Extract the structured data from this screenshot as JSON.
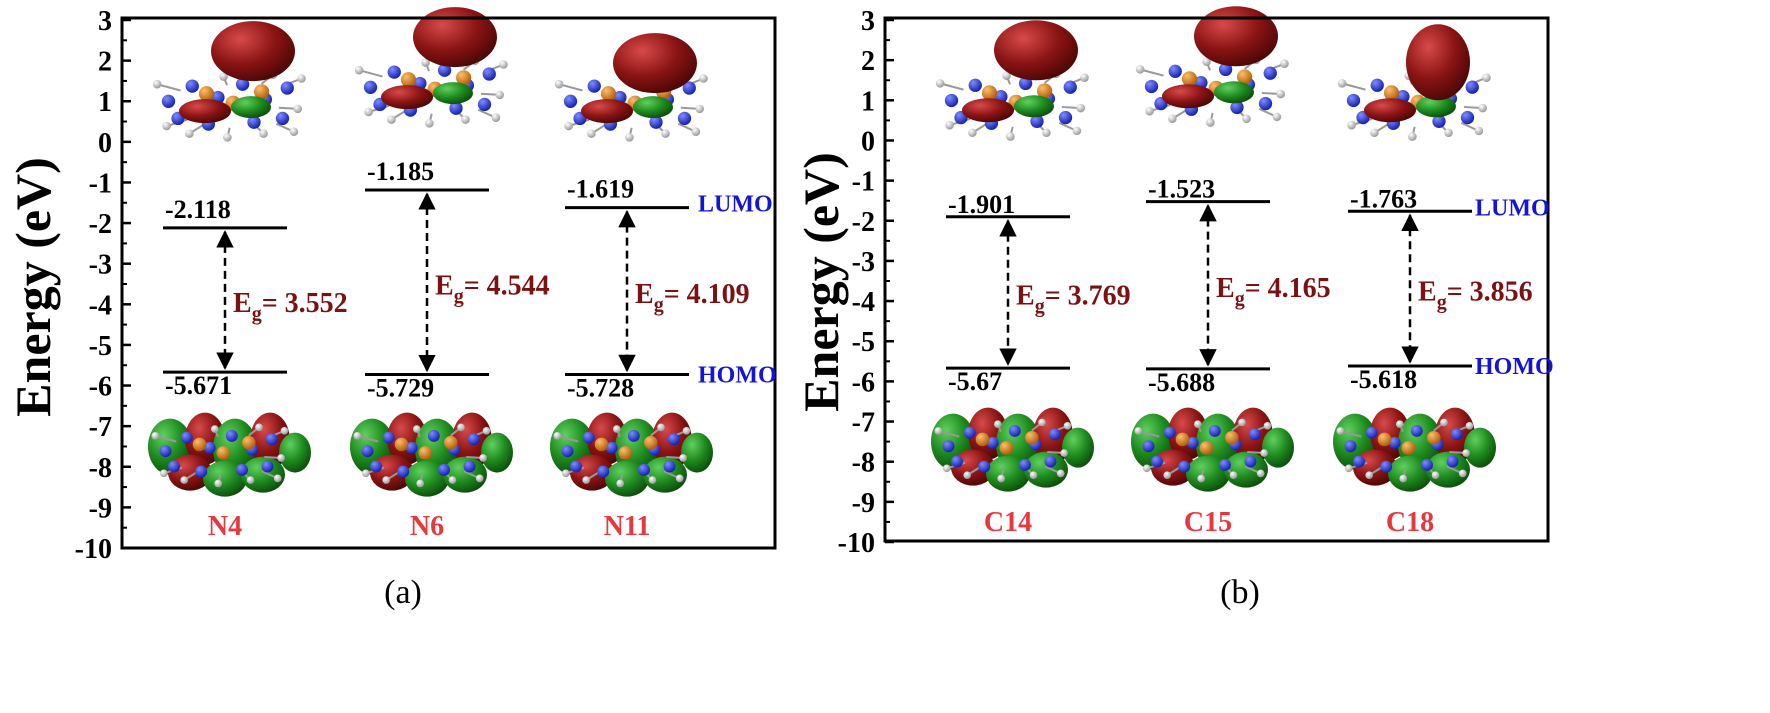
{
  "chart_data": [
    {
      "type": "energy-level diagram",
      "panel": "(a)",
      "ylabel": "Energy (eV)",
      "ylim": [
        -10,
        3
      ],
      "yticks": [
        "3",
        "2",
        "1",
        "0",
        "-1",
        "-2",
        "-3",
        "-4",
        "-5",
        "-6",
        "-7",
        "-8",
        "-9",
        "-10"
      ],
      "level_tags": {
        "lumo": "LUMO",
        "homo": "HOMO"
      },
      "gap_label": {
        "main": "E",
        "sub": "g",
        "sep": "= "
      },
      "systems": [
        {
          "name": "N4",
          "lumo": -2.118,
          "homo": -5.671,
          "lumo_label": "-2.118",
          "homo_label": "-5.671",
          "gap_label": "3.552"
        },
        {
          "name": "N6",
          "lumo": -1.185,
          "homo": -5.729,
          "lumo_label": "-1.185",
          "homo_label": "-5.729",
          "gap_label": "4.544"
        },
        {
          "name": "N11",
          "lumo": -1.619,
          "homo": -5.728,
          "lumo_label": "-1.619",
          "homo_label": "-5.728",
          "gap_label": "4.109"
        }
      ]
    },
    {
      "type": "energy-level diagram",
      "panel": "(b)",
      "ylabel": "Energy (eV)",
      "ylim": [
        -10,
        3
      ],
      "yticks": [
        "3",
        "2",
        "1",
        "0",
        "-1",
        "-2",
        "-3",
        "-4",
        "-5",
        "-6",
        "-7",
        "-8",
        "-9",
        "-10"
      ],
      "level_tags": {
        "lumo": "LUMO",
        "homo": "HOMO"
      },
      "gap_label": {
        "main": "E",
        "sub": "g",
        "sep": "= "
      },
      "systems": [
        {
          "name": "C14",
          "lumo": -1.901,
          "homo": -5.67,
          "lumo_label": "-1.901",
          "homo_label": "-5.67",
          "gap_label": "3.769"
        },
        {
          "name": "C15",
          "lumo": -1.523,
          "homo": -5.688,
          "lumo_label": "-1.523",
          "homo_label": "-5.688",
          "gap_label": "4.165"
        },
        {
          "name": "C18",
          "lumo": -1.763,
          "homo": -5.618,
          "lumo_label": "-1.763",
          "homo_label": "-5.618",
          "gap_label": "3.856"
        }
      ]
    }
  ],
  "colors": {
    "axis": "#000000",
    "level": "#000000",
    "gap": "#7b1113",
    "molecule_name": "#e8383d",
    "tag": "#1414d8",
    "orbital_positive": "#8b1414",
    "orbital_negative": "#1e8a1e",
    "atom_nitrogen": "#1f2fd6",
    "atom_phosphorus": "#d07a18",
    "atom_hydrogen": "#e8e8e8"
  }
}
